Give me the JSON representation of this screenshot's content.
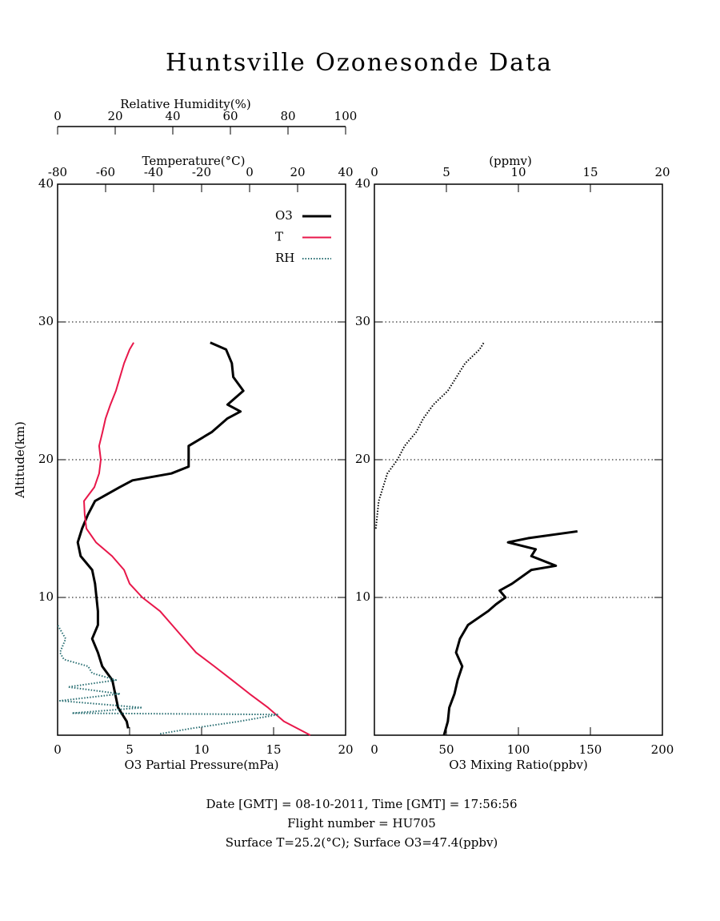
{
  "title": "Huntsville Ozonesonde Data",
  "footer": [
    "Date [GMT] = 08-10-2011,  Time [GMT] = 17:56:56",
    "Flight number = HU705",
    "Surface T=25.2(°C); Surface O3=47.4(ppbv)"
  ],
  "chart_data": [
    {
      "type": "line",
      "ylabel": "Altitude(km)",
      "ylim": [
        0,
        40
      ],
      "yticks": [
        10,
        20,
        30,
        40
      ],
      "grid": true,
      "xlabel": "O3 Partial Pressure(mPa)",
      "xlim": [
        0,
        20
      ],
      "xticks": [
        0,
        5,
        10,
        15,
        20
      ],
      "x2label": "Temperature(°C)",
      "x2lim": [
        -80,
        40
      ],
      "x2ticks": [
        -80,
        -60,
        -40,
        -20,
        0,
        20,
        40
      ],
      "x3label": "Relative Humidity(%)",
      "x3lim": [
        0,
        100
      ],
      "x3ticks": [
        0,
        20,
        40,
        60,
        80,
        100
      ],
      "legend": "upper right",
      "series": [
        {
          "name": "O3",
          "color": "#000000",
          "axis": "x",
          "altitude": [
            0.5,
            1,
            2,
            3,
            4,
            5,
            6,
            7,
            8,
            9,
            10,
            11,
            12,
            13,
            14,
            15,
            16,
            17,
            18,
            18.5,
            19,
            19.5,
            20,
            21,
            22,
            23,
            23.5,
            24,
            25,
            26,
            27,
            28,
            28.5
          ],
          "values": [
            4.9,
            4.8,
            4.2,
            4.0,
            3.8,
            3.1,
            2.8,
            2.4,
            2.8,
            2.8,
            2.7,
            2.6,
            2.4,
            1.6,
            1.4,
            1.7,
            2.1,
            2.6,
            4.3,
            5.2,
            7.9,
            9.1,
            9.1,
            9.1,
            10.7,
            11.8,
            12.7,
            11.8,
            12.9,
            12.2,
            12.1,
            11.7,
            10.6
          ]
        },
        {
          "name": "T",
          "color": "#e8174a",
          "axis": "x2",
          "altitude": [
            0,
            1,
            2,
            3,
            4,
            5,
            6,
            7,
            8,
            9,
            10,
            11,
            12,
            13,
            14,
            15,
            16,
            17,
            18,
            19,
            20,
            21,
            22,
            23,
            24,
            25,
            26,
            27,
            28,
            28.5
          ],
          "values": [
            25.3,
            14.3,
            7.7,
            0,
            -7.3,
            -14.7,
            -22.3,
            -27.3,
            -32.3,
            -37.3,
            -44.7,
            -50,
            -52.3,
            -57.3,
            -64,
            -68,
            -68.7,
            -69,
            -64.7,
            -62.7,
            -62,
            -62.7,
            -61.3,
            -60,
            -58,
            -55.7,
            -54,
            -52.3,
            -50,
            -48.3
          ]
        },
        {
          "name": "RH",
          "color": "#2a6f73",
          "axis": "x3",
          "altitude": [
            0.1,
            0.5,
            1,
            1.5,
            1.6,
            2,
            2.5,
            3,
            3.5,
            4,
            4.5,
            5,
            5.5,
            6,
            7,
            8
          ],
          "values": [
            35.6,
            46.7,
            63,
            76.7,
            5,
            29.4,
            0.8,
            21.7,
            3.6,
            20.3,
            12,
            10.6,
            2.2,
            0.8,
            2.8,
            0
          ]
        }
      ]
    },
    {
      "type": "line",
      "ylim": [
        0,
        40
      ],
      "yticks": [
        10,
        20,
        30,
        40
      ],
      "grid": true,
      "xlabel": "O3 Mixing Ratio(ppbv)",
      "xlim": [
        0,
        200
      ],
      "xticks": [
        0,
        50,
        100,
        150,
        200
      ],
      "x2label": "(ppmv)",
      "x2lim": [
        0,
        20
      ],
      "x2ticks": [
        0,
        5,
        10,
        15,
        20
      ],
      "series": [
        {
          "color": "#000000",
          "axis": "x",
          "altitude": [
            0,
            1,
            2,
            3,
            4,
            5,
            6,
            7,
            8,
            9,
            9.5,
            10,
            10.5,
            11,
            12,
            12.3,
            13,
            13.5,
            14,
            14.3,
            14.8
          ],
          "values": [
            48.3,
            51,
            52,
            55.6,
            57.8,
            61,
            56.7,
            59.4,
            65,
            78.9,
            84.4,
            91,
            87,
            95.6,
            109,
            126,
            109,
            112,
            92.8,
            106.7,
            141
          ]
        },
        {
          "color": "#000000",
          "axis": "x2",
          "altitude": [
            15,
            16,
            17,
            18,
            19,
            20,
            21,
            22,
            23,
            24,
            25,
            26,
            27,
            28,
            28.5
          ],
          "values": [
            0.1,
            0.2,
            0.3,
            0.6,
            0.9,
            1.6,
            2.1,
            2.9,
            3.4,
            4.1,
            5.1,
            5.7,
            6.3,
            7.3,
            7.6
          ]
        }
      ]
    }
  ]
}
